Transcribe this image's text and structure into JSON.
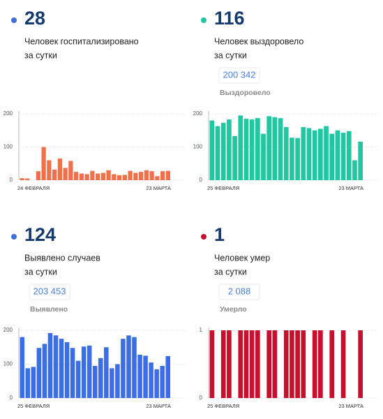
{
  "chart_data": [
    {
      "type": "bar",
      "big_number": 28,
      "dot_color": "#3b6fe0",
      "caption": [
        "Человек госпитализировано",
        "за сутки"
      ],
      "categories": [
        "24 ФЕВРАЛЯ",
        null,
        null,
        null,
        null,
        null,
        null,
        null,
        null,
        null,
        null,
        null,
        null,
        null,
        null,
        null,
        null,
        null,
        null,
        null,
        null,
        null,
        null,
        null,
        null,
        null,
        null,
        "23 МАРТА"
      ],
      "values": [
        6,
        5,
        0,
        27,
        100,
        60,
        32,
        65,
        37,
        58,
        25,
        20,
        18,
        28,
        20,
        22,
        30,
        18,
        15,
        16,
        28,
        22,
        25,
        30,
        27,
        12,
        27,
        28
      ],
      "color": "#f0704a",
      "ylim": [
        0,
        200
      ],
      "yticks": [
        0,
        100,
        200
      ],
      "grid": true
    },
    {
      "type": "bar",
      "big_number": 116,
      "dot_color": "#20c5a0",
      "caption": [
        "Человек выздоровело",
        "за сутки"
      ],
      "total": "200 342",
      "total_label": "Выздоровело",
      "categories": [
        "25 ФЕВРАЛЯ",
        null,
        null,
        null,
        null,
        null,
        null,
        null,
        null,
        null,
        null,
        null,
        null,
        null,
        null,
        null,
        null,
        null,
        null,
        null,
        null,
        null,
        null,
        null,
        null,
        null,
        "23 МАРТА"
      ],
      "values": [
        180,
        163,
        173,
        183,
        133,
        195,
        185,
        183,
        187,
        140,
        193,
        190,
        187,
        160,
        128,
        127,
        160,
        157,
        150,
        155,
        163,
        140,
        150,
        143,
        148,
        60,
        116
      ],
      "color": "#1fc8a3",
      "ylim": [
        0,
        200
      ],
      "yticks": [
        0,
        100,
        200
      ],
      "grid": true
    },
    {
      "type": "bar",
      "big_number": 124,
      "dot_color": "#3b6fe0",
      "caption": [
        "Выявлено случаев",
        "за сутки"
      ],
      "total": "203 453",
      "total_label": "Выявлено",
      "categories": [
        "25 ФЕВРАЛЯ",
        null,
        null,
        null,
        null,
        null,
        null,
        null,
        null,
        null,
        null,
        null,
        null,
        null,
        null,
        null,
        null,
        null,
        null,
        null,
        null,
        null,
        null,
        null,
        null,
        null,
        "23 МАРТА"
      ],
      "values": [
        180,
        88,
        92,
        148,
        160,
        192,
        185,
        175,
        165,
        148,
        110,
        152,
        155,
        95,
        118,
        150,
        88,
        100,
        175,
        185,
        180,
        128,
        125,
        105,
        85,
        95,
        124
      ],
      "color": "#3a6ee8",
      "ylim": [
        0,
        200
      ],
      "yticks": [
        0,
        100,
        200
      ],
      "grid": true
    },
    {
      "type": "bar",
      "big_number": 1,
      "dot_color": "#c8102e",
      "caption": [
        "Человек умер",
        "за сутки"
      ],
      "total": "2 088",
      "total_label": "Умерло",
      "categories": [
        "25 ФЕВРАЛЯ",
        null,
        null,
        null,
        null,
        null,
        null,
        null,
        null,
        null,
        null,
        null,
        null,
        null,
        null,
        null,
        null,
        null,
        null,
        null,
        null,
        null,
        null,
        null,
        null,
        null,
        "23 МАРТА"
      ],
      "values": [
        1,
        0,
        1,
        1,
        0,
        1,
        1,
        1,
        1,
        0,
        1,
        1,
        0,
        1,
        1,
        1,
        1,
        0,
        1,
        1,
        0,
        1,
        0,
        1,
        0,
        0,
        1
      ],
      "color": "#c8102e",
      "ylim": [
        0,
        1
      ],
      "yticks": [
        0,
        1
      ],
      "grid": true
    }
  ]
}
